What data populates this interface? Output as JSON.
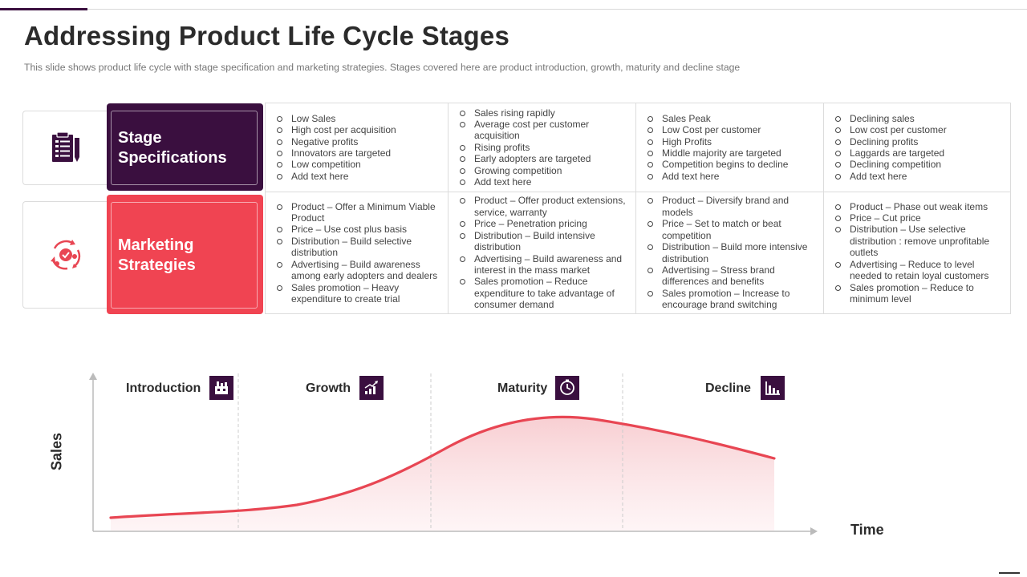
{
  "header": {
    "title": "Addressing Product Life Cycle Stages",
    "subtitle": "This slide shows product life cycle with stage specification and marketing strategies. Stages covered  here are product introduction, growth,  maturity and decline stage"
  },
  "rows": [
    {
      "label_line1": "Stage",
      "label_line2": "Specifications",
      "icon": "clipboard-icon",
      "color": "#3a0f3f"
    },
    {
      "label_line1": "Marketing",
      "label_line2": "Strategies",
      "icon": "strategy-cycle-icon",
      "color": "#f04452"
    }
  ],
  "table": {
    "specifications": [
      [
        "Low Sales",
        "High cost per acquisition",
        "Negative profits",
        "Innovators are targeted",
        "Low competition",
        "Add text here"
      ],
      [
        "Sales rising rapidly",
        "Average cost per customer acquisition",
        "Rising profits",
        "Early adopters are targeted",
        "Growing competition",
        "Add text here"
      ],
      [
        "Sales Peak",
        "Low Cost per customer",
        "High Profits",
        "Middle majority are targeted",
        "Competition begins to decline",
        "Add text here"
      ],
      [
        "Declining sales",
        "Low cost per customer",
        "Declining profits",
        "Laggards are targeted",
        "Declining competition",
        "Add text here"
      ]
    ],
    "strategies": [
      [
        "Product – Offer a Minimum Viable Product",
        "Price – Use cost plus basis",
        "Distribution – Build selective distribution",
        "Advertising – Build awareness among early adopters and dealers",
        "Sales promotion – Heavy expenditure to create trial"
      ],
      [
        "Product – Offer product extensions, service, warranty",
        "Price – Penetration pricing",
        "Distribution – Build intensive distribution",
        "Advertising – Build awareness and interest in the mass market",
        "Sales promotion – Reduce expenditure to take advantage of consumer demand"
      ],
      [
        "Product – Diversify brand and models",
        "Price – Set to match or beat competition",
        "Distribution – Build more intensive distribution",
        "Advertising – Stress brand differences and benefits",
        "Sales promotion – Increase to encourage brand switching"
      ],
      [
        "Product – Phase out weak items",
        "Price – Cut price",
        "Distribution – Use selective distribution : remove unprofitable outlets",
        "Advertising – Reduce to level needed to retain loyal customers",
        "Sales promotion – Reduce to minimum level"
      ]
    ]
  },
  "chart": {
    "stages": [
      {
        "label": "Introduction",
        "icon": "factory-icon"
      },
      {
        "label": "Growth",
        "icon": "growth-chart-icon"
      },
      {
        "label": "Maturity",
        "icon": "clock-icon"
      },
      {
        "label": "Decline",
        "icon": "decline-chart-icon"
      }
    ],
    "y_label": "Sales",
    "x_label": "Time",
    "line_color": "#e84653"
  }
}
